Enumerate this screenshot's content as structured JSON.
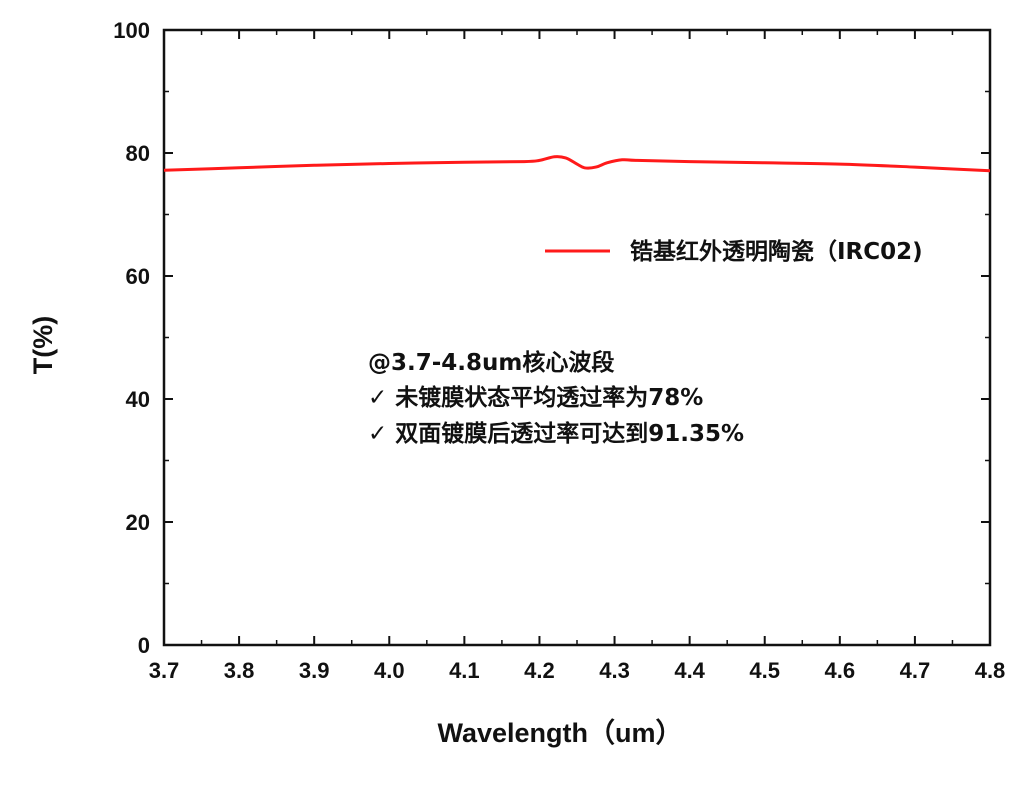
{
  "chart_data": {
    "type": "line",
    "xlabel": "Wavelength（um）",
    "ylabel": "T(%)",
    "xlim": [
      3.7,
      4.8
    ],
    "ylim": [
      0,
      100
    ],
    "x_ticks": [
      "3.7",
      "3.8",
      "3.9",
      "4.0",
      "4.1",
      "4.2",
      "4.3",
      "4.4",
      "4.5",
      "4.6",
      "4.7",
      "4.8"
    ],
    "y_ticks": [
      "0",
      "20",
      "40",
      "60",
      "80",
      "100"
    ],
    "grid": false,
    "legend_position": "top-right",
    "series": [
      {
        "name": "锆基红外透明陶瓷（IRC02)",
        "color": "#ff1a1a",
        "x": [
          3.7,
          3.8,
          3.9,
          4.0,
          4.1,
          4.18,
          4.2,
          4.22,
          4.235,
          4.25,
          4.26,
          4.275,
          4.29,
          4.31,
          4.33,
          4.4,
          4.5,
          4.6,
          4.7,
          4.8
        ],
        "y": [
          77.2,
          77.6,
          78.0,
          78.3,
          78.5,
          78.6,
          78.8,
          79.4,
          79.2,
          78.2,
          77.6,
          77.7,
          78.4,
          78.9,
          78.8,
          78.6,
          78.4,
          78.2,
          77.7,
          77.1
        ]
      }
    ],
    "annotations": [
      "@3.7-4.8um核心波段",
      "✓ 未镀膜状态平均透过率为78%",
      "✓ 双面镀膜后透过率可达到91.35%"
    ]
  }
}
